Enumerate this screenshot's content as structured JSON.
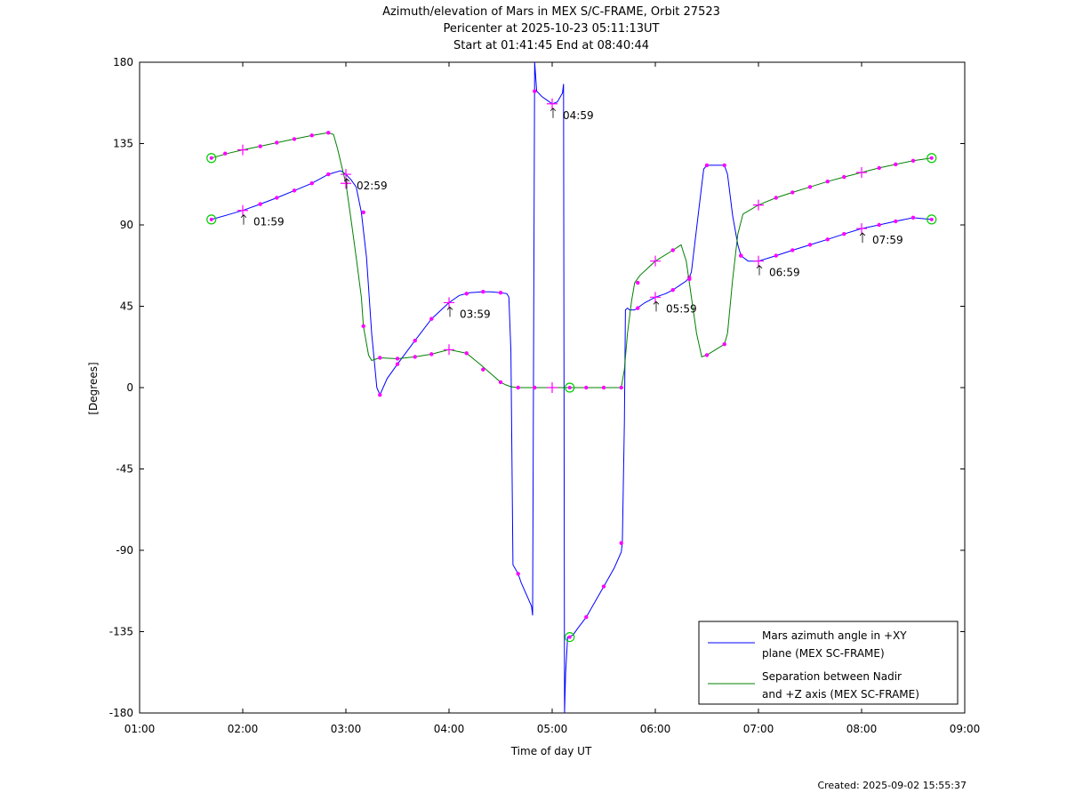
{
  "chart_data": {
    "type": "line",
    "title": "Azimuth/elevation of Mars in MEX S/C-FRAME,  Orbit 27523",
    "subtitle_lines": [
      "Pericenter at 2025-10-23 05:11:13UT",
      "Start at 01:41:45 End at 08:40:44"
    ],
    "xlabel": "Time of day UT",
    "ylabel": "[Degrees]",
    "xlim": [
      1.0,
      9.0
    ],
    "ylim": [
      -180,
      180
    ],
    "x_ticks": [
      1,
      2,
      3,
      4,
      5,
      6,
      7,
      8,
      9
    ],
    "x_tick_labels": [
      "01:00",
      "02:00",
      "03:00",
      "04:00",
      "05:00",
      "06:00",
      "07:00",
      "08:00",
      "09:00"
    ],
    "y_ticks": [
      -180,
      -135,
      -90,
      -45,
      0,
      45,
      90,
      135,
      180
    ],
    "y_tick_labels": [
      "-180",
      "-135",
      "-90",
      "-45",
      "0",
      "45",
      "90",
      "135",
      "180"
    ],
    "grid": false,
    "legend_position": "bottom-right",
    "colors": {
      "azimuth": "#0000ff",
      "separation": "#008000",
      "marker": "#ff00ff",
      "endpoint": "#00cc00"
    },
    "series": [
      {
        "name": "Mars azimuth angle in +XY plane (MEX SC-FRAME)",
        "legend_lines": [
          "Mars azimuth angle in +XY",
          "plane (MEX SC-FRAME)"
        ],
        "color": "#0000ff",
        "points": [
          [
            1.696,
            93
          ],
          [
            1.85,
            95.5
          ],
          [
            2.0,
            98
          ],
          [
            2.17,
            101.5
          ],
          [
            2.33,
            105
          ],
          [
            2.5,
            109
          ],
          [
            2.67,
            113
          ],
          [
            2.83,
            118
          ],
          [
            2.95,
            120
          ],
          [
            3.0,
            118
          ],
          [
            3.05,
            115
          ],
          [
            3.1,
            111
          ],
          [
            3.15,
            97
          ],
          [
            3.2,
            72
          ],
          [
            3.25,
            30
          ],
          [
            3.3,
            0
          ],
          [
            3.33,
            -4
          ],
          [
            3.4,
            5
          ],
          [
            3.5,
            13
          ],
          [
            3.67,
            26
          ],
          [
            3.83,
            38
          ],
          [
            4.0,
            47
          ],
          [
            4.1,
            51
          ],
          [
            4.2,
            52.5
          ],
          [
            4.33,
            53
          ],
          [
            4.4,
            53
          ],
          [
            4.5,
            52.5
          ],
          [
            4.56,
            52
          ],
          [
            4.58,
            50
          ],
          [
            4.6,
            20
          ],
          [
            4.62,
            -98
          ],
          [
            4.67,
            -103
          ],
          [
            4.7,
            -108
          ],
          [
            4.77,
            -117
          ],
          [
            4.8,
            -121
          ],
          [
            4.81,
            -126
          ],
          [
            4.83,
            180
          ],
          [
            4.85,
            164
          ],
          [
            4.9,
            161
          ],
          [
            4.95,
            159
          ],
          [
            5.0,
            157
          ],
          [
            5.05,
            158
          ],
          [
            5.1,
            163
          ],
          [
            5.11,
            168
          ],
          [
            5.12,
            -180
          ],
          [
            5.13,
            -158
          ],
          [
            5.15,
            -138
          ],
          [
            5.2,
            -137
          ],
          [
            5.25,
            -133
          ],
          [
            5.33,
            -127
          ],
          [
            5.5,
            -110
          ],
          [
            5.6,
            -100
          ],
          [
            5.67,
            -91
          ],
          [
            5.68,
            -86
          ],
          [
            5.7,
            -20
          ],
          [
            5.71,
            43
          ],
          [
            5.73,
            44
          ],
          [
            5.75,
            43
          ],
          [
            5.8,
            43
          ],
          [
            5.85,
            45
          ],
          [
            5.9,
            47
          ],
          [
            6.0,
            50
          ],
          [
            6.1,
            52
          ],
          [
            6.17,
            54
          ],
          [
            6.3,
            59
          ],
          [
            6.33,
            61
          ],
          [
            6.35,
            64
          ],
          [
            6.4,
            88
          ],
          [
            6.45,
            112
          ],
          [
            6.47,
            121
          ],
          [
            6.5,
            123
          ],
          [
            6.55,
            123
          ],
          [
            6.6,
            123
          ],
          [
            6.67,
            123
          ],
          [
            6.7,
            118
          ],
          [
            6.75,
            95
          ],
          [
            6.8,
            79
          ],
          [
            6.83,
            73
          ],
          [
            6.9,
            70
          ],
          [
            7.0,
            70
          ],
          [
            7.17,
            73
          ],
          [
            7.33,
            76
          ],
          [
            7.5,
            79
          ],
          [
            7.67,
            82
          ],
          [
            7.83,
            85
          ],
          [
            8.0,
            88
          ],
          [
            8.17,
            90
          ],
          [
            8.33,
            92
          ],
          [
            8.5,
            94
          ],
          [
            8.679,
            93
          ]
        ],
        "markers": [
          [
            2.17,
            101.5
          ],
          [
            2.33,
            105
          ],
          [
            2.5,
            109
          ],
          [
            2.67,
            113
          ],
          [
            2.83,
            118
          ],
          [
            3.17,
            97
          ],
          [
            3.33,
            -4
          ],
          [
            3.5,
            13
          ],
          [
            3.67,
            26
          ],
          [
            3.83,
            38
          ],
          [
            4.17,
            52
          ],
          [
            4.33,
            53
          ],
          [
            4.5,
            52.5
          ],
          [
            4.67,
            -103
          ],
          [
            4.83,
            164
          ],
          [
            5.33,
            -127
          ],
          [
            5.5,
            -110
          ],
          [
            5.67,
            -86
          ],
          [
            5.83,
            44
          ],
          [
            6.17,
            54
          ],
          [
            6.33,
            61
          ],
          [
            6.5,
            123
          ],
          [
            6.67,
            123
          ],
          [
            6.83,
            73
          ],
          [
            7.17,
            73
          ],
          [
            7.33,
            76
          ],
          [
            7.5,
            79
          ],
          [
            7.67,
            82
          ],
          [
            7.83,
            85
          ],
          [
            8.17,
            90
          ],
          [
            8.33,
            92
          ],
          [
            8.5,
            94
          ]
        ],
        "hour_crosses": [
          [
            2.0,
            98
          ],
          [
            3.0,
            118
          ],
          [
            4.0,
            47
          ],
          [
            5.0,
            157
          ],
          [
            6.0,
            50
          ],
          [
            7.0,
            70
          ],
          [
            8.0,
            88
          ]
        ],
        "endpoint_circles": [
          [
            1.696,
            93
          ],
          [
            5.17,
            -138
          ],
          [
            8.679,
            93
          ]
        ]
      },
      {
        "name": "Separation between Nadir and +Z axis (MEX SC-FRAME)",
        "legend_lines": [
          "Separation between Nadir",
          "and +Z axis (MEX SC-FRAME)"
        ],
        "color": "#008000",
        "points": [
          [
            1.696,
            127
          ],
          [
            1.85,
            129.5
          ],
          [
            2.0,
            131.5
          ],
          [
            2.17,
            133.5
          ],
          [
            2.33,
            135.5
          ],
          [
            2.5,
            137.5
          ],
          [
            2.67,
            139.5
          ],
          [
            2.83,
            141
          ],
          [
            2.88,
            140
          ],
          [
            2.92,
            132
          ],
          [
            2.97,
            120
          ],
          [
            3.0,
            113
          ],
          [
            3.05,
            93
          ],
          [
            3.1,
            72
          ],
          [
            3.15,
            50
          ],
          [
            3.17,
            34
          ],
          [
            3.22,
            18
          ],
          [
            3.25,
            15
          ],
          [
            3.3,
            16
          ],
          [
            3.33,
            16.5
          ],
          [
            3.5,
            16
          ],
          [
            3.67,
            17
          ],
          [
            3.83,
            18.5
          ],
          [
            4.0,
            21
          ],
          [
            4.17,
            19
          ],
          [
            4.3,
            13
          ],
          [
            4.4,
            8
          ],
          [
            4.5,
            3
          ],
          [
            4.55,
            1.5
          ],
          [
            4.6,
            0.5
          ],
          [
            4.67,
            0
          ],
          [
            4.83,
            0
          ],
          [
            5.0,
            0
          ],
          [
            5.17,
            0
          ],
          [
            5.33,
            0
          ],
          [
            5.5,
            0
          ],
          [
            5.67,
            0
          ],
          [
            5.7,
            10
          ],
          [
            5.73,
            30
          ],
          [
            5.77,
            48
          ],
          [
            5.8,
            58
          ],
          [
            5.85,
            62
          ],
          [
            6.0,
            70
          ],
          [
            6.17,
            76
          ],
          [
            6.25,
            79
          ],
          [
            6.3,
            70
          ],
          [
            6.35,
            50
          ],
          [
            6.4,
            30
          ],
          [
            6.45,
            17
          ],
          [
            6.5,
            18
          ],
          [
            6.67,
            24
          ],
          [
            6.7,
            30
          ],
          [
            6.75,
            60
          ],
          [
            6.8,
            85
          ],
          [
            6.85,
            96
          ],
          [
            7.0,
            101
          ],
          [
            7.17,
            105
          ],
          [
            7.33,
            108
          ],
          [
            7.5,
            111
          ],
          [
            7.67,
            114
          ],
          [
            7.83,
            116.5
          ],
          [
            8.0,
            119
          ],
          [
            8.17,
            121.5
          ],
          [
            8.33,
            123.5
          ],
          [
            8.5,
            125.5
          ],
          [
            8.679,
            127
          ]
        ],
        "markers": [
          [
            1.83,
            129.5
          ],
          [
            2.17,
            133.5
          ],
          [
            2.33,
            135.5
          ],
          [
            2.5,
            137.5
          ],
          [
            2.67,
            139.5
          ],
          [
            2.83,
            141
          ],
          [
            3.17,
            34
          ],
          [
            3.33,
            16.5
          ],
          [
            3.5,
            16
          ],
          [
            3.67,
            17
          ],
          [
            3.83,
            18.5
          ],
          [
            4.17,
            19
          ],
          [
            4.33,
            10
          ],
          [
            4.5,
            3
          ],
          [
            4.67,
            0
          ],
          [
            4.83,
            0
          ],
          [
            5.33,
            0
          ],
          [
            5.5,
            0
          ],
          [
            5.67,
            0
          ],
          [
            5.83,
            58
          ],
          [
            6.17,
            76
          ],
          [
            6.33,
            60
          ],
          [
            6.5,
            18
          ],
          [
            6.67,
            24
          ],
          [
            6.83,
            73
          ],
          [
            7.17,
            105
          ],
          [
            7.33,
            108
          ],
          [
            7.5,
            111
          ],
          [
            7.67,
            114
          ],
          [
            7.83,
            116.5
          ],
          [
            8.17,
            121.5
          ],
          [
            8.33,
            123.5
          ],
          [
            8.5,
            125.5
          ]
        ],
        "hour_crosses": [
          [
            2.0,
            131.5
          ],
          [
            3.0,
            113
          ],
          [
            4.0,
            21
          ],
          [
            5.0,
            0
          ],
          [
            6.0,
            70
          ],
          [
            7.0,
            101
          ],
          [
            8.0,
            119
          ]
        ],
        "endpoint_circles": [
          [
            1.696,
            127
          ],
          [
            5.17,
            0
          ],
          [
            8.679,
            127
          ]
        ]
      }
    ],
    "annotations": [
      {
        "x": 2.0,
        "y": 98,
        "text": "01:59"
      },
      {
        "x": 3.0,
        "y": 118,
        "text": "02:59"
      },
      {
        "x": 4.0,
        "y": 47,
        "text": "03:59"
      },
      {
        "x": 5.0,
        "y": 157,
        "text": "04:59"
      },
      {
        "x": 6.0,
        "y": 50,
        "text": "05:59"
      },
      {
        "x": 7.0,
        "y": 70,
        "text": "06:59"
      },
      {
        "x": 8.0,
        "y": 88,
        "text": "07:59"
      }
    ]
  },
  "footer": {
    "created": "Created: 2025-09-02 15:55:37"
  }
}
